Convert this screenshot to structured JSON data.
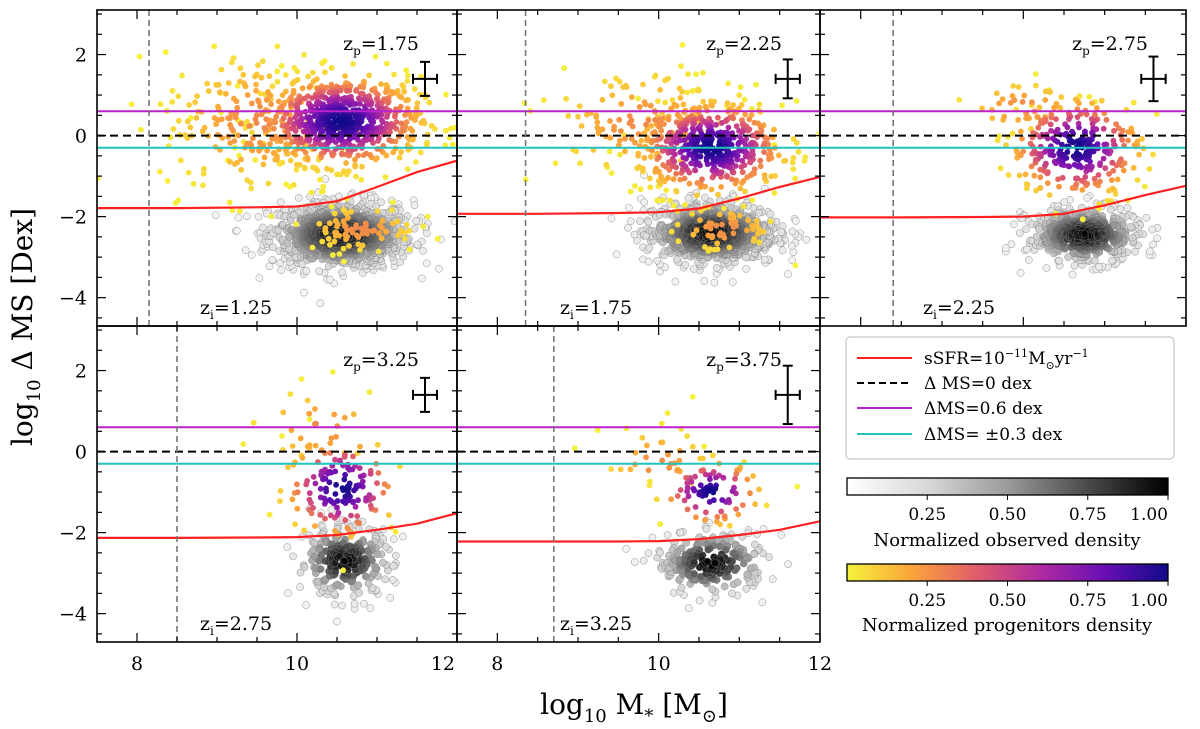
{
  "chart_data": {
    "type": "scatter",
    "shared_axes": {
      "xlabel_main": "log",
      "xlabel_sub": "10",
      "xlabel_rest": " M",
      "xlabel_rest_sub": "*",
      "xlabel_unit_open": " [M",
      "xlabel_unit_sub": "⊙",
      "xlabel_unit_close": "]",
      "ylabel_main": "log",
      "ylabel_sub": "10",
      "ylabel_rest": " Δ MS [Dex]",
      "xlim": [
        7.5,
        12.0
      ],
      "ylim": [
        -4.7,
        3.1
      ],
      "xticks": [
        8,
        10,
        12
      ],
      "xtick_labels": [
        "8",
        "10",
        "12"
      ],
      "yticks": [
        2,
        0,
        -2,
        -4
      ],
      "ytick_labels": [
        "2",
        "0",
        "−2",
        "−4"
      ],
      "reference_lines": {
        "ms_zero": 0.0,
        "ms_plus": 0.6,
        "ms_minus": -0.3
      }
    },
    "panels": [
      {
        "zp_label": "z",
        "zp_sub": "p",
        "zp_value": "=1.75",
        "zi_label": "z",
        "zi_sub": "i",
        "zi_value": "=1.25",
        "mass_limit": 8.15,
        "ssfr_line": [
          [
            7.5,
            -1.79
          ],
          [
            8.5,
            -1.79
          ],
          [
            9.5,
            -1.77
          ],
          [
            10.0,
            -1.75
          ],
          [
            10.5,
            -1.62
          ],
          [
            11.0,
            -1.27
          ],
          [
            11.5,
            -0.9
          ],
          [
            12.0,
            -0.62
          ]
        ],
        "error_bar": {
          "x": 11.6,
          "y": 1.4,
          "xerr": 0.15,
          "yerr": 0.42
        },
        "observed_cluster": {
          "x": 10.55,
          "y": -2.45,
          "sx": 0.45,
          "sy": 0.42,
          "n": 900
        },
        "progenitor_clusters": [
          {
            "x": 10.55,
            "y": 0.35,
            "sx": 0.5,
            "sy": 0.55,
            "n": 700
          },
          {
            "x": 9.5,
            "y": 0.3,
            "sx": 0.6,
            "sy": 0.9,
            "n": 220
          },
          {
            "x": 10.8,
            "y": -2.3,
            "sx": 0.35,
            "sy": 0.3,
            "n": 80
          }
        ]
      },
      {
        "zp_label": "z",
        "zp_sub": "p",
        "zp_value": "=2.25",
        "zi_label": "z",
        "zi_sub": "i",
        "zi_value": "=1.75",
        "mass_limit": 8.35,
        "ssfr_line": [
          [
            7.5,
            -1.93
          ],
          [
            8.5,
            -1.93
          ],
          [
            9.5,
            -1.91
          ],
          [
            10.0,
            -1.89
          ],
          [
            10.5,
            -1.8
          ],
          [
            11.0,
            -1.55
          ],
          [
            11.5,
            -1.27
          ],
          [
            12.0,
            -1.02
          ]
        ],
        "error_bar": {
          "x": 11.6,
          "y": 1.4,
          "xerr": 0.15,
          "yerr": 0.48
        },
        "observed_cluster": {
          "x": 10.65,
          "y": -2.4,
          "sx": 0.42,
          "sy": 0.4,
          "n": 700
        },
        "progenitor_clusters": [
          {
            "x": 10.65,
            "y": -0.3,
            "sx": 0.45,
            "sy": 0.55,
            "n": 500
          },
          {
            "x": 9.8,
            "y": 0.3,
            "sx": 0.6,
            "sy": 0.7,
            "n": 130
          },
          {
            "x": 10.8,
            "y": -2.3,
            "sx": 0.35,
            "sy": 0.3,
            "n": 60
          }
        ]
      },
      {
        "zp_label": "z",
        "zp_sub": "p",
        "zp_value": "=2.75",
        "zi_label": "z",
        "zi_sub": "i",
        "zi_value": "=2.25",
        "mass_limit": 8.4,
        "ssfr_line": [
          [
            7.5,
            -2.02
          ],
          [
            8.5,
            -2.02
          ],
          [
            9.5,
            -2.01
          ],
          [
            10.0,
            -2.0
          ],
          [
            10.5,
            -1.93
          ],
          [
            11.0,
            -1.72
          ],
          [
            11.5,
            -1.47
          ],
          [
            12.0,
            -1.24
          ]
        ],
        "error_bar": {
          "x": 11.6,
          "y": 1.4,
          "xerr": 0.15,
          "yerr": 0.55
        },
        "observed_cluster": {
          "x": 10.75,
          "y": -2.45,
          "sx": 0.35,
          "sy": 0.35,
          "n": 450
        },
        "progenitor_clusters": [
          {
            "x": 10.65,
            "y": -0.3,
            "sx": 0.4,
            "sy": 0.6,
            "n": 280
          },
          {
            "x": 10.0,
            "y": 0.7,
            "sx": 0.4,
            "sy": 0.35,
            "n": 40
          }
        ]
      },
      {
        "zp_label": "z",
        "zp_sub": "p",
        "zp_value": "=3.25",
        "zi_label": "z",
        "zi_sub": "i",
        "zi_value": "=2.75",
        "mass_limit": 8.5,
        "ssfr_line": [
          [
            7.5,
            -2.13
          ],
          [
            8.5,
            -2.13
          ],
          [
            9.5,
            -2.12
          ],
          [
            10.0,
            -2.11
          ],
          [
            10.5,
            -2.06
          ],
          [
            11.0,
            -1.93
          ],
          [
            11.5,
            -1.78
          ],
          [
            12.0,
            -1.52
          ]
        ],
        "error_bar": {
          "x": 11.6,
          "y": 1.4,
          "xerr": 0.15,
          "yerr": 0.42
        },
        "observed_cluster": {
          "x": 10.6,
          "y": -2.7,
          "sx": 0.3,
          "sy": 0.45,
          "n": 250
        },
        "progenitor_clusters": [
          {
            "x": 10.55,
            "y": -0.9,
            "sx": 0.35,
            "sy": 0.6,
            "n": 140
          },
          {
            "x": 10.3,
            "y": 0.6,
            "sx": 0.45,
            "sy": 0.5,
            "n": 30
          }
        ]
      },
      {
        "zp_label": "z",
        "zp_sub": "p",
        "zp_value": "=3.75",
        "zi_label": "z",
        "zi_sub": "i",
        "zi_value": "=3.25",
        "mass_limit": 8.7,
        "ssfr_line": [
          [
            7.5,
            -2.22
          ],
          [
            8.5,
            -2.22
          ],
          [
            9.5,
            -2.22
          ],
          [
            10.0,
            -2.21
          ],
          [
            10.5,
            -2.16
          ],
          [
            11.0,
            -2.06
          ],
          [
            11.5,
            -1.93
          ],
          [
            12.0,
            -1.72
          ]
        ],
        "error_bar": {
          "x": 11.6,
          "y": 1.4,
          "xerr": 0.15,
          "yerr": 0.72
        },
        "observed_cluster": {
          "x": 10.65,
          "y": -2.75,
          "sx": 0.35,
          "sy": 0.4,
          "n": 230
        },
        "progenitor_clusters": [
          {
            "x": 10.65,
            "y": -1.0,
            "sx": 0.3,
            "sy": 0.4,
            "n": 90
          },
          {
            "x": 10.0,
            "y": -0.3,
            "sx": 0.35,
            "sy": 0.5,
            "n": 30
          }
        ]
      }
    ],
    "legend": {
      "placement": "right-middle",
      "entries": [
        {
          "key": "ssfr",
          "color": "#ff2020",
          "dash": "solid",
          "text_main": "sSFR=10",
          "text_sup": "−11",
          "text_rest": "M",
          "text_rest_sub": "⊙",
          "text_tail": "yr",
          "text_tail_sup": "−1"
        },
        {
          "key": "ms0",
          "color": "#000000",
          "dash": "dashed",
          "text": "Δ MS=0 dex"
        },
        {
          "key": "ms06",
          "color": "#bb22cc",
          "dash": "solid",
          "text": "ΔMS=0.6 dex"
        },
        {
          "key": "ms03",
          "color": "#20c2c2",
          "dash": "solid",
          "text": "ΔMS= ±0.3 dex"
        }
      ]
    },
    "colorbars": [
      {
        "key": "observed",
        "label": "Normalized observed density",
        "ticks": [
          "0.25",
          "0.50",
          "0.75",
          "1.00"
        ],
        "colors": [
          "#ffffff",
          "#d8d8d8",
          "#9a9a9a",
          "#4a4a4a",
          "#000000"
        ]
      },
      {
        "key": "progenitors",
        "label": "Normalized progenitors density",
        "ticks": [
          "0.25",
          "0.50",
          "0.75",
          "1.00"
        ],
        "colors": [
          "#f6f23c",
          "#fba53a",
          "#e15e69",
          "#b02aa0",
          "#6a0fb4",
          "#12098a"
        ]
      }
    ],
    "colors": {
      "ssfr_line": "#ff2020",
      "ms_plus": "#bb22cc",
      "ms_minus": "#20c2c2",
      "mass_limit": "#777777"
    }
  }
}
